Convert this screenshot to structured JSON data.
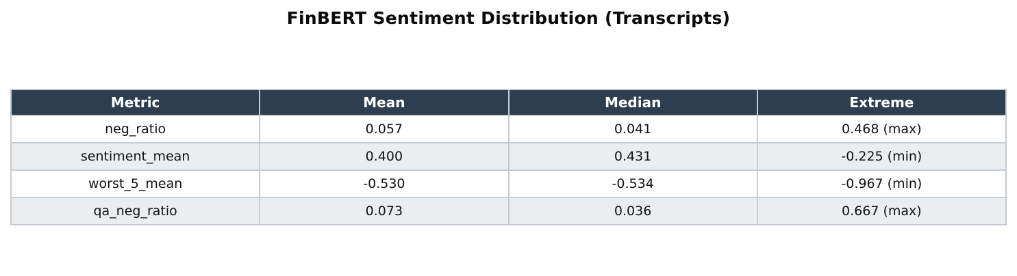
{
  "title": "FinBERT Sentiment Distribution (Transcripts)",
  "colors": {
    "header_bg": "#2d3e50",
    "header_text": "#ffffff",
    "row_bg": "#ffffff",
    "row_alt_bg": "#eaeef0",
    "border": "#c5cbd1",
    "title_text": "#0a0a0a",
    "cell_text": "#111111"
  },
  "table": {
    "columns": [
      "Metric",
      "Mean",
      "Median",
      "Extreme"
    ],
    "rows": [
      [
        "neg_ratio",
        "0.057",
        "0.041",
        "0.468 (max)"
      ],
      [
        "sentiment_mean",
        "0.400",
        "0.431",
        "-0.225 (min)"
      ],
      [
        "worst_5_mean",
        "-0.530",
        "-0.534",
        "-0.967 (min)"
      ],
      [
        "qa_neg_ratio",
        "0.073",
        "0.036",
        "0.667 (max)"
      ]
    ]
  },
  "chart_data": {
    "type": "table",
    "title": "FinBERT Sentiment Distribution (Transcripts)",
    "columns": [
      "Metric",
      "Mean",
      "Median",
      "Extreme"
    ],
    "rows": [
      {
        "metric": "neg_ratio",
        "mean": 0.057,
        "median": 0.041,
        "extreme": 0.468,
        "extreme_kind": "max",
        "extreme_label": "0.468 (max)"
      },
      {
        "metric": "sentiment_mean",
        "mean": 0.4,
        "median": 0.431,
        "extreme": -0.225,
        "extreme_kind": "min",
        "extreme_label": "-0.225 (min)"
      },
      {
        "metric": "worst_5_mean",
        "mean": -0.53,
        "median": -0.534,
        "extreme": -0.967,
        "extreme_kind": "min",
        "extreme_label": "-0.967 (min)"
      },
      {
        "metric": "qa_neg_ratio",
        "mean": 0.073,
        "median": 0.036,
        "extreme": 0.667,
        "extreme_kind": "max",
        "extreme_label": "0.667 (max)"
      }
    ],
    "layout": {
      "title_position": "top-center",
      "header_style": "dark-navy-bold-white",
      "row_striping": "white / light-gray alternating",
      "text_align": "center"
    }
  }
}
